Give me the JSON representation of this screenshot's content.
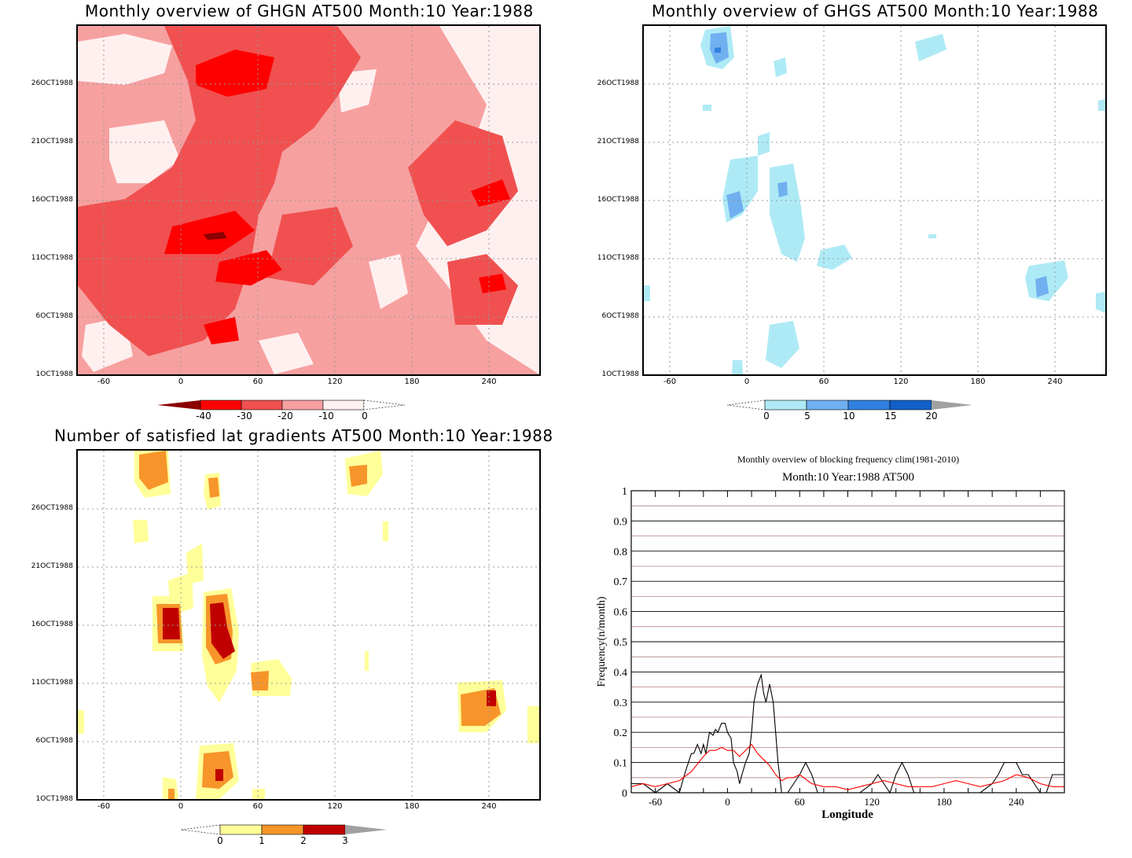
{
  "colors": {
    "red_light": "#fff0f0",
    "red_1": "#f7a0a0",
    "red_2": "#f05050",
    "red_3": "#ff0000",
    "red_4": "#8b0000",
    "blue_1": "#aeeaf5",
    "blue_2": "#70b0f0",
    "blue_3": "#3080e0",
    "blue_4": "#1060c8",
    "yellow": "#ffff99",
    "orange": "#f7952a",
    "darkred": "#c00000",
    "gray": "#a0a0a0"
  },
  "panels": {
    "ghgn": {
      "title": "Monthly overview of GHGN AT500 Month:10 Year:1988",
      "ylabels": [
        "26OCT1988",
        "21OCT1988",
        "16OCT1988",
        "11OCT1988",
        "6OCT1988",
        "1OCT1988"
      ],
      "xlabels": [
        "-60",
        "0",
        "60",
        "120",
        "180",
        "240"
      ],
      "colorbar": [
        "-40",
        "-30",
        "-20",
        "-10",
        "0"
      ]
    },
    "ghgs": {
      "title": "Monthly overview of GHGS AT500 Month:10 Year:1988",
      "ylabels": [
        "26OCT1988",
        "21OCT1988",
        "16OCT1988",
        "11OCT1988",
        "6OCT1988",
        "1OCT1988"
      ],
      "xlabels": [
        "-60",
        "0",
        "60",
        "120",
        "180",
        "240"
      ],
      "colorbar": [
        "0",
        "5",
        "10",
        "15",
        "20"
      ]
    },
    "gradients": {
      "title": "Number of satisfied lat gradients AT500 Month:10 Year:1988",
      "ylabels": [
        "26OCT1988",
        "21OCT1988",
        "16OCT1988",
        "11OCT1988",
        "6OCT1988",
        "1OCT1988"
      ],
      "xlabels": [
        "-60",
        "0",
        "60",
        "120",
        "180",
        "240"
      ],
      "colorbar": [
        "0",
        "1",
        "2",
        "3"
      ]
    }
  },
  "chart_data": [
    {
      "type": "heatmap",
      "title": "Monthly overview of GHGN AT500 Month:10 Year:1988",
      "x_ticks": [
        -60,
        0,
        60,
        120,
        180,
        240
      ],
      "y_ticks": [
        "1OCT1988",
        "6OCT1988",
        "11OCT1988",
        "16OCT1988",
        "21OCT1988",
        "26OCT1988"
      ],
      "levels": [
        -40,
        -30,
        -20,
        -10,
        0
      ]
    },
    {
      "type": "heatmap",
      "title": "Monthly overview of GHGS AT500 Month:10 Year:1988",
      "x_ticks": [
        -60,
        0,
        60,
        120,
        180,
        240
      ],
      "y_ticks": [
        "1OCT1988",
        "6OCT1988",
        "11OCT1988",
        "16OCT1988",
        "21OCT1988",
        "26OCT1988"
      ],
      "levels": [
        0,
        5,
        10,
        15,
        20
      ]
    },
    {
      "type": "heatmap",
      "title": "Number of satisfied lat gradients AT500 Month:10 Year:1988",
      "x_ticks": [
        -60,
        0,
        60,
        120,
        180,
        240
      ],
      "y_ticks": [
        "1OCT1988",
        "6OCT1988",
        "11OCT1988",
        "16OCT1988",
        "21OCT1988",
        "26OCT1988"
      ],
      "levels": [
        0,
        1,
        2,
        3
      ]
    },
    {
      "type": "line",
      "title": "Monthly overview of blocking frequency clim(1981-2010)",
      "subtitle": "Month:10 Year:1988  AT500",
      "xlabel": "Longitude",
      "ylabel": "Frequency(n/month)",
      "xlim": [
        -80,
        280
      ],
      "ylim": [
        0,
        1
      ],
      "x_ticks": [
        -60,
        0,
        60,
        120,
        180,
        240
      ],
      "y_ticks": [
        "0",
        "0.1",
        "0.2",
        "0.3",
        "0.4",
        "0.5",
        "0.6",
        "0.7",
        "0.8",
        "0.9",
        "1"
      ],
      "series": [
        {
          "color": "#000000",
          "x": [
            -80,
            -70,
            -60,
            -50,
            -40,
            -35,
            -30,
            -28,
            -25,
            -22,
            -20,
            -18,
            -15,
            -12,
            -10,
            -8,
            -5,
            -2,
            0,
            3,
            5,
            8,
            10,
            12,
            15,
            18,
            20,
            22,
            25,
            28,
            30,
            32,
            35,
            38,
            40,
            42,
            45,
            50,
            55,
            60,
            65,
            70,
            75,
            80,
            90,
            100,
            110,
            120,
            125,
            130,
            135,
            140,
            145,
            150,
            155,
            160,
            170,
            180,
            190,
            200,
            210,
            220,
            225,
            230,
            235,
            240,
            245,
            250,
            255,
            260,
            265,
            270,
            275,
            280
          ],
          "y": [
            0.03,
            0.03,
            0.0,
            0.03,
            0.0,
            0.07,
            0.13,
            0.13,
            0.16,
            0.13,
            0.16,
            0.13,
            0.2,
            0.19,
            0.21,
            0.2,
            0.23,
            0.23,
            0.2,
            0.18,
            0.1,
            0.07,
            0.03,
            0.06,
            0.1,
            0.13,
            0.2,
            0.3,
            0.36,
            0.39,
            0.33,
            0.3,
            0.36,
            0.3,
            0.2,
            0.1,
            0.0,
            0.0,
            0.03,
            0.06,
            0.1,
            0.06,
            0.0,
            0.0,
            0.0,
            0.0,
            0.0,
            0.03,
            0.06,
            0.03,
            0.0,
            0.06,
            0.1,
            0.06,
            0.0,
            0.0,
            0.0,
            0.0,
            0.0,
            0.0,
            0.0,
            0.03,
            0.06,
            0.1,
            0.1,
            0.1,
            0.06,
            0.06,
            0.03,
            0.0,
            0.0,
            0.06,
            0.06,
            0.06
          ]
        },
        {
          "color": "#ff0000",
          "x": [
            -80,
            -70,
            -60,
            -50,
            -40,
            -30,
            -20,
            -15,
            -10,
            -5,
            0,
            5,
            10,
            15,
            20,
            25,
            30,
            35,
            40,
            45,
            50,
            55,
            60,
            70,
            80,
            90,
            100,
            110,
            120,
            130,
            140,
            150,
            160,
            170,
            180,
            190,
            200,
            210,
            220,
            230,
            240,
            250,
            260,
            270,
            280
          ],
          "y": [
            0.02,
            0.03,
            0.02,
            0.03,
            0.04,
            0.07,
            0.12,
            0.14,
            0.14,
            0.15,
            0.14,
            0.14,
            0.12,
            0.14,
            0.16,
            0.13,
            0.11,
            0.09,
            0.06,
            0.04,
            0.05,
            0.05,
            0.06,
            0.03,
            0.02,
            0.02,
            0.01,
            0.02,
            0.03,
            0.04,
            0.03,
            0.02,
            0.02,
            0.02,
            0.03,
            0.04,
            0.03,
            0.02,
            0.03,
            0.04,
            0.06,
            0.05,
            0.03,
            0.02,
            0.02
          ]
        }
      ]
    }
  ]
}
